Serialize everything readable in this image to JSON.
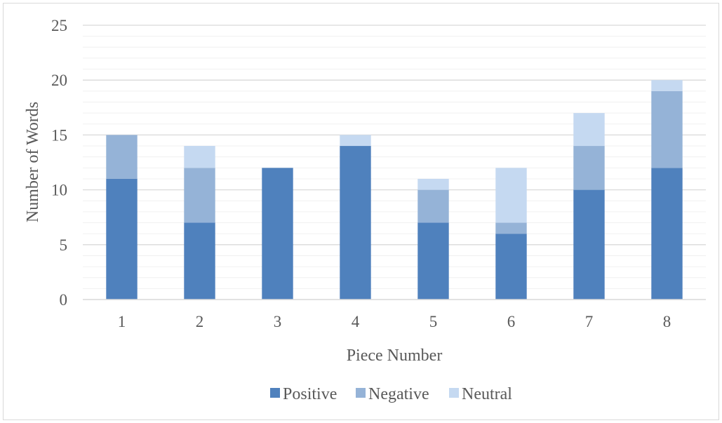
{
  "chart_data": {
    "type": "bar",
    "stacked": true,
    "categories": [
      "1",
      "2",
      "3",
      "4",
      "5",
      "6",
      "7",
      "8"
    ],
    "series": [
      {
        "name": "Positive",
        "values": [
          11,
          7,
          12,
          14,
          7,
          6,
          10,
          12
        ],
        "color": "#4f81bd"
      },
      {
        "name": "Negative",
        "values": [
          4,
          5,
          0,
          0,
          3,
          1,
          4,
          7
        ],
        "color": "#95b3d7"
      },
      {
        "name": "Neutral",
        "values": [
          0,
          2,
          0,
          1,
          1,
          5,
          3,
          1
        ],
        "color": "#c5d9f1"
      }
    ],
    "xlabel": "Piece Number",
    "ylabel": "Number of Words",
    "ylim": [
      0,
      25
    ],
    "yticks": [
      "0",
      "5",
      "10",
      "15",
      "20",
      "25"
    ],
    "grid": true,
    "legend_position": "bottom"
  }
}
